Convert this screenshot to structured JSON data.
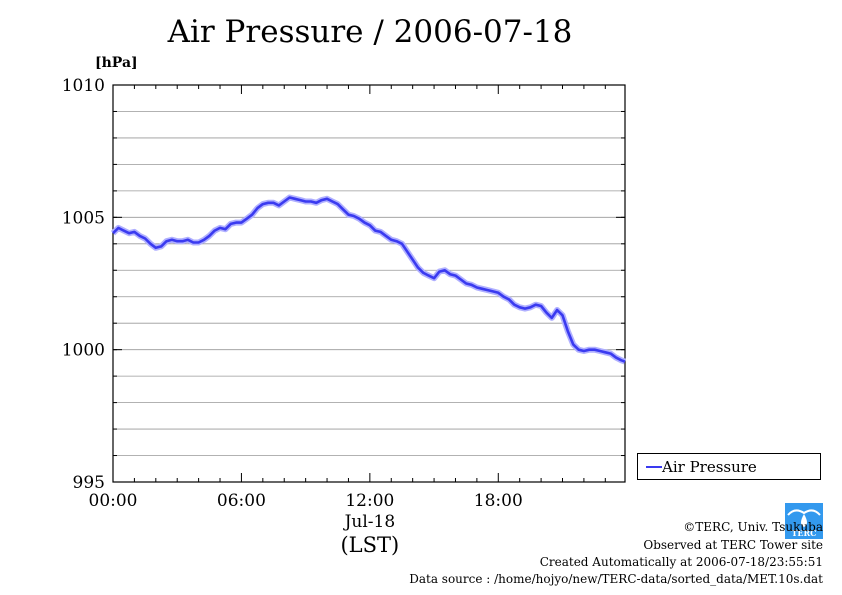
{
  "chart_data": {
    "type": "line",
    "title": "Air Pressure / 2006-07-18",
    "ylabel_unit": "[hPa]",
    "ylim": [
      995,
      1010
    ],
    "xlim_hours": [
      0,
      23.92
    ],
    "y_ticks": [
      "995",
      "1000",
      "1005",
      "1010"
    ],
    "x_ticks": [
      {
        "hour": 0,
        "label": "00:00"
      },
      {
        "hour": 6,
        "label": "06:00"
      },
      {
        "hour": 12,
        "label": "12:00"
      },
      {
        "hour": 18,
        "label": "18:00"
      }
    ],
    "x_date_label": "Jul-18",
    "x_zone_label": "(LST)",
    "grid": true,
    "legend_position": "bottom-right outside",
    "series": [
      {
        "name": "Air Pressure",
        "color": "#3a3af0",
        "x_hours": [
          0.0,
          0.25,
          0.5,
          0.75,
          1.0,
          1.25,
          1.5,
          1.75,
          2.0,
          2.25,
          2.5,
          2.75,
          3.0,
          3.25,
          3.5,
          3.75,
          4.0,
          4.25,
          4.5,
          4.75,
          5.0,
          5.25,
          5.5,
          5.75,
          6.0,
          6.25,
          6.5,
          6.75,
          7.0,
          7.25,
          7.5,
          7.75,
          8.0,
          8.25,
          8.5,
          8.75,
          9.0,
          9.25,
          9.5,
          9.75,
          10.0,
          10.25,
          10.5,
          10.75,
          11.0,
          11.25,
          11.5,
          11.75,
          12.0,
          12.25,
          12.5,
          12.75,
          13.0,
          13.25,
          13.5,
          13.75,
          14.0,
          14.25,
          14.5,
          14.75,
          15.0,
          15.25,
          15.5,
          15.75,
          16.0,
          16.25,
          16.5,
          16.75,
          17.0,
          17.25,
          17.5,
          17.75,
          18.0,
          18.25,
          18.5,
          18.75,
          19.0,
          19.25,
          19.5,
          19.75,
          20.0,
          20.25,
          20.5,
          20.75,
          21.0,
          21.25,
          21.5,
          21.75,
          22.0,
          22.25,
          22.5,
          22.75,
          23.0,
          23.25,
          23.5,
          23.75,
          23.92
        ],
        "values": [
          1004.4,
          1004.6,
          1004.5,
          1004.4,
          1004.45,
          1004.3,
          1004.2,
          1004.0,
          1003.85,
          1003.9,
          1004.1,
          1004.15,
          1004.1,
          1004.1,
          1004.15,
          1004.05,
          1004.05,
          1004.15,
          1004.3,
          1004.5,
          1004.6,
          1004.55,
          1004.75,
          1004.8,
          1004.8,
          1004.95,
          1005.1,
          1005.35,
          1005.5,
          1005.55,
          1005.55,
          1005.45,
          1005.6,
          1005.75,
          1005.7,
          1005.65,
          1005.6,
          1005.6,
          1005.55,
          1005.65,
          1005.7,
          1005.6,
          1005.5,
          1005.3,
          1005.1,
          1005.05,
          1004.95,
          1004.8,
          1004.7,
          1004.5,
          1004.45,
          1004.3,
          1004.15,
          1004.1,
          1004.0,
          1003.7,
          1003.4,
          1003.1,
          1002.9,
          1002.8,
          1002.7,
          1002.95,
          1003.0,
          1002.85,
          1002.8,
          1002.65,
          1002.5,
          1002.45,
          1002.35,
          1002.3,
          1002.25,
          1002.2,
          1002.15,
          1002.0,
          1001.9,
          1001.7,
          1001.6,
          1001.55,
          1001.6,
          1001.7,
          1001.65,
          1001.4,
          1001.2,
          1001.5,
          1001.3,
          1000.7,
          1000.2,
          1000.0,
          999.95,
          1000.0,
          1000.0,
          999.95,
          999.9,
          999.85,
          999.7,
          999.6,
          999.55
        ]
      }
    ]
  },
  "credits": {
    "line1": "©TERC, Univ. Tsukuba",
    "line2": "Observed at TERC Tower site",
    "line3": "Created Automatically at 2006-07-18/23:55:51",
    "line4": "Data source : /home/hojyo/new/TERC-data/sorted_data/MET.10s.dat"
  },
  "logo": {
    "text": "TERC",
    "color": "#3399ee"
  }
}
